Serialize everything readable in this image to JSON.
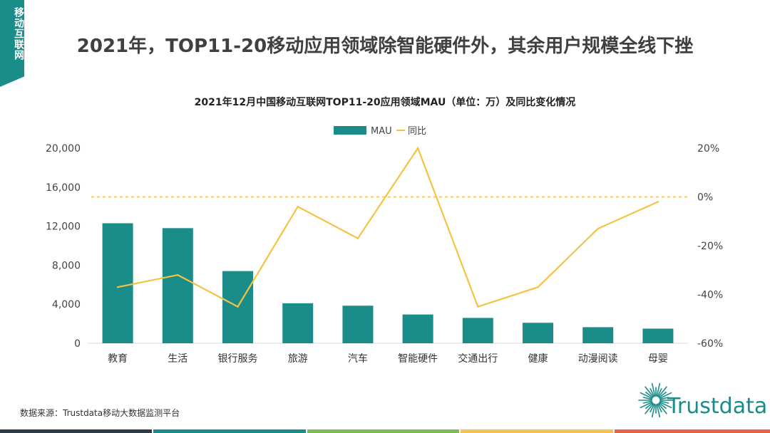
{
  "side_tag": {
    "label": "移动互联网"
  },
  "headline": {
    "text": "2021年，TOP11-20移动应用领域除智能硬件外，其余用户规模全线下挫"
  },
  "footer": {
    "source": "数据来源：Trustdata移动大数据监测平台"
  },
  "logo": {
    "text": "Trustdata",
    "color": "#1a8c8a"
  },
  "bottom_bar_colors": [
    "#2e3a46",
    "#1a8c8a",
    "#7dbb4f",
    "#f2c451",
    "#e8604c"
  ],
  "chart_data": {
    "type": "bar",
    "title": "2021年12月中国移动互联网TOP11-20应用领域MAU（单位：万）及同比变化情况",
    "categories": [
      "教育",
      "生活",
      "银行服务",
      "旅游",
      "汽车",
      "智能硬件",
      "交通出行",
      "健康",
      "动漫阅读",
      "母婴"
    ],
    "series": [
      {
        "name": "MAU",
        "type": "bar",
        "axis": "left",
        "color": "#1a8c8a",
        "values": [
          12300,
          11800,
          7400,
          4100,
          3850,
          2950,
          2600,
          2100,
          1650,
          1500
        ]
      },
      {
        "name": "同比",
        "type": "line",
        "axis": "right",
        "color": "#f5c242",
        "values": [
          -37,
          -32,
          -45,
          -4,
          -17,
          20,
          -45,
          -37,
          -13,
          -2
        ]
      }
    ],
    "left_axis": {
      "min": 0,
      "max": 20000,
      "ticks": [
        "0",
        "4,000",
        "8,000",
        "12,000",
        "16,000",
        "20,000"
      ],
      "tick_values": [
        0,
        4000,
        8000,
        12000,
        16000,
        20000
      ]
    },
    "right_axis": {
      "min": -60,
      "max": 20,
      "ticks": [
        "-60%",
        "-40%",
        "-20%",
        "0%",
        "20%"
      ],
      "tick_values": [
        -60,
        -40,
        -20,
        0,
        20
      ]
    },
    "reference_line": {
      "value": 0,
      "axis": "right",
      "style": "dashed",
      "color": "#f5c242"
    },
    "legend": {
      "position": "top",
      "items": [
        "MAU",
        "同比"
      ]
    }
  }
}
